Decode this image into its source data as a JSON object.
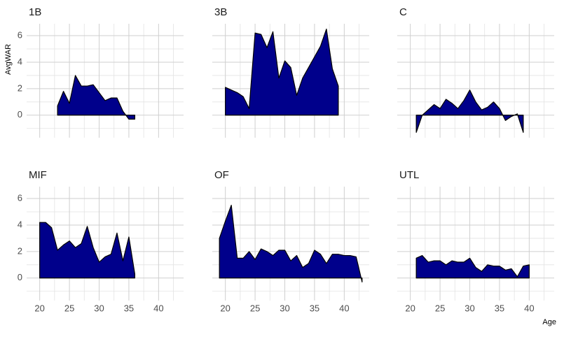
{
  "chart_data": {
    "type": "area",
    "x_label": "Age",
    "y_label": "AvgWAR",
    "color": "#00008b",
    "stroke": "#000000",
    "grid": true,
    "xlim": [
      17.8,
      44.2
    ],
    "ylim": [
      -1.7,
      6.9
    ],
    "xticks": [
      20,
      25,
      30,
      35,
      40
    ],
    "x_minor_ticks": [
      22.5,
      27.5,
      32.5,
      37.5,
      42.5
    ],
    "yticks": [
      0,
      2,
      4,
      6
    ],
    "y_minor_ticks": [
      -1,
      1,
      3,
      5
    ],
    "panels": [
      {
        "name": "1B",
        "x": [
          23,
          24,
          25,
          26,
          27,
          28,
          29,
          30,
          31,
          32,
          33,
          34,
          35,
          36
        ],
        "values": [
          0.7,
          1.8,
          0.9,
          3.0,
          2.2,
          2.2,
          2.3,
          1.7,
          1.1,
          1.3,
          1.3,
          0.3,
          -0.3,
          -0.3
        ]
      },
      {
        "name": "3B",
        "x": [
          20,
          21,
          22,
          23,
          24,
          25,
          26,
          27,
          28,
          29,
          30,
          31,
          32,
          33,
          34,
          35,
          36,
          37,
          38,
          39
        ],
        "values": [
          2.1,
          1.9,
          1.7,
          1.4,
          0.5,
          6.2,
          6.1,
          5.1,
          6.3,
          2.8,
          4.1,
          3.6,
          1.5,
          2.8,
          3.6,
          4.4,
          5.2,
          6.5,
          3.5,
          2.2
        ]
      },
      {
        "name": "C",
        "x": [
          21,
          22,
          23,
          24,
          25,
          26,
          27,
          28,
          29,
          30,
          31,
          32,
          33,
          34,
          35,
          36,
          37,
          38,
          39
        ],
        "values": [
          -1.3,
          0.0,
          0.4,
          0.8,
          0.5,
          1.2,
          0.9,
          0.5,
          1.1,
          1.9,
          1.0,
          0.4,
          0.6,
          1.0,
          0.5,
          -0.4,
          -0.1,
          0.1,
          -1.3
        ]
      },
      {
        "name": "MIF",
        "x": [
          20,
          21,
          22,
          23,
          24,
          25,
          26,
          27,
          28,
          29,
          30,
          31,
          32,
          33,
          34,
          35,
          36
        ],
        "values": [
          4.2,
          4.2,
          3.8,
          2.1,
          2.5,
          2.8,
          2.3,
          2.6,
          3.9,
          2.3,
          1.2,
          1.6,
          1.8,
          3.4,
          1.3,
          3.1,
          0.3
        ]
      },
      {
        "name": "OF",
        "x": [
          19,
          20,
          21,
          22,
          23,
          24,
          25,
          26,
          27,
          28,
          29,
          30,
          31,
          32,
          33,
          34,
          35,
          36,
          37,
          38,
          39,
          40,
          41,
          42,
          43
        ],
        "values": [
          3.0,
          4.3,
          5.5,
          1.5,
          1.5,
          2.0,
          1.4,
          2.2,
          2.0,
          1.7,
          2.1,
          2.1,
          1.3,
          1.7,
          0.8,
          1.1,
          2.1,
          1.8,
          1.1,
          1.8,
          1.8,
          1.7,
          1.7,
          1.6,
          -0.3
        ]
      },
      {
        "name": "UTL",
        "x": [
          21,
          22,
          23,
          24,
          25,
          26,
          27,
          28,
          29,
          30,
          31,
          32,
          33,
          34,
          35,
          36,
          37,
          38,
          39,
          40
        ],
        "values": [
          1.5,
          1.7,
          1.2,
          1.3,
          1.3,
          1.0,
          1.3,
          1.2,
          1.2,
          1.5,
          0.8,
          0.5,
          1.0,
          0.9,
          0.9,
          0.6,
          0.7,
          0.1,
          0.9,
          1.0
        ]
      }
    ]
  }
}
